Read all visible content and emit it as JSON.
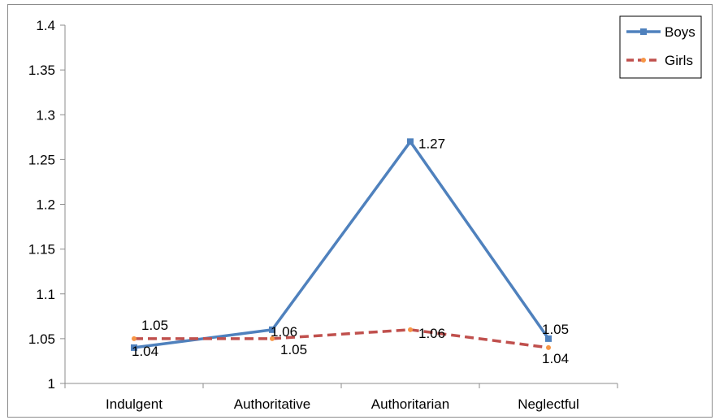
{
  "chart_data": {
    "type": "line",
    "title": "",
    "xlabel": "",
    "ylabel": "",
    "categories": [
      "Indulgent",
      "Authoritative",
      "Authoritarian",
      "Neglectful"
    ],
    "ylim": [
      1,
      1.4
    ],
    "yticks": [
      "1",
      "1.05",
      "1.1",
      "1.15",
      "1.2",
      "1.25",
      "1.3",
      "1.35",
      "1.4"
    ],
    "grid": false,
    "legend_position": "top-right",
    "series": [
      {
        "name": "Boys",
        "values": [
          1.04,
          1.06,
          1.27,
          1.05
        ],
        "labels": [
          "1.04",
          "1.06",
          "1.27",
          "1.05"
        ],
        "color": "#4f81bd",
        "line_style": "solid",
        "marker": "square"
      },
      {
        "name": "Girls",
        "values": [
          1.05,
          1.05,
          1.06,
          1.04
        ],
        "labels": [
          "1.05",
          "1.05",
          "1.06",
          "1.04"
        ],
        "color": "#c0504d",
        "marker_color": "#f79646",
        "line_style": "dashed",
        "marker": "circle"
      }
    ]
  }
}
